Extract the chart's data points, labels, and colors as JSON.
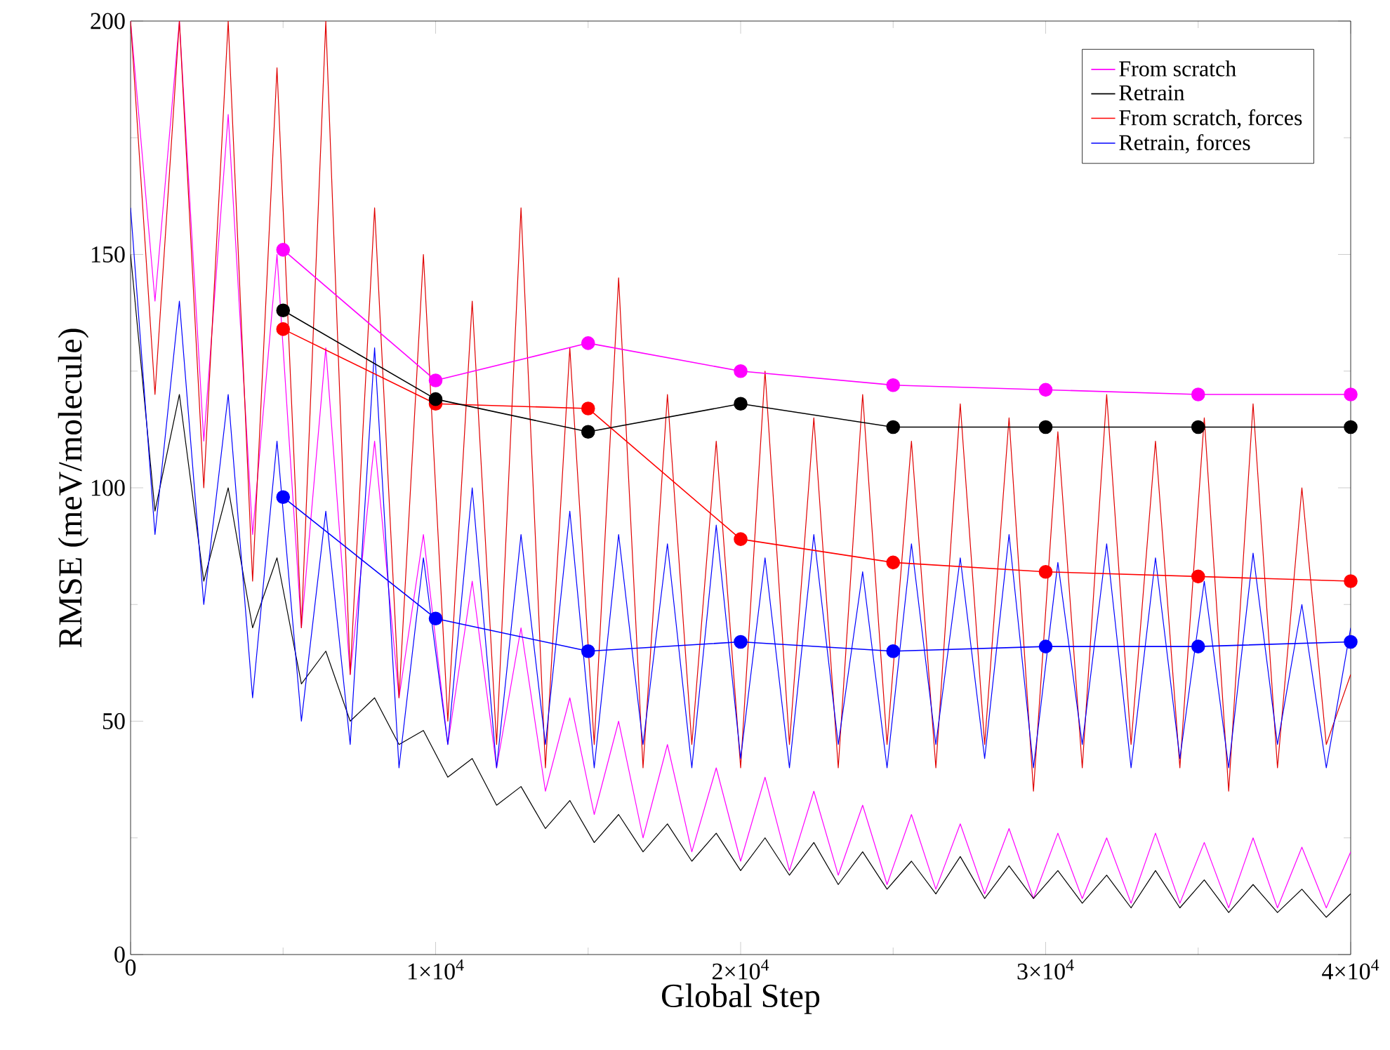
{
  "chart_data": {
    "type": "line",
    "xlabel": "Global Step",
    "ylabel": "RMSE (meV/molecule)",
    "xlim": [
      0,
      40000
    ],
    "ylim": [
      0,
      200
    ],
    "xticks": [
      0,
      {
        "value": 10000,
        "label": "1×10$^{4}$"
      },
      {
        "value": 20000,
        "label": "2×10$^{4}$"
      },
      {
        "value": 30000,
        "label": "3×10$^{4}$"
      },
      {
        "value": 40000,
        "label": "4×10$^{4}$"
      }
    ],
    "yticks": [
      0,
      50,
      100,
      150,
      200
    ],
    "legend": "top right",
    "series": [
      {
        "color": "#ff00ff",
        "marker": "none",
        "x": [
          0,
          800,
          1600,
          2400,
          3200,
          4000,
          4800,
          5600,
          6400,
          7200,
          8000,
          8800,
          9600,
          10400,
          11200,
          12000,
          12800,
          13600,
          14400,
          15200,
          16000,
          16800,
          17600,
          18400,
          19200,
          20000,
          20800,
          21600,
          22400,
          23200,
          24000,
          24800,
          25600,
          26400,
          27200,
          28000,
          28800,
          29600,
          30400,
          31200,
          32000,
          32800,
          33600,
          34400,
          35200,
          36000,
          36800,
          37600,
          38400,
          39200,
          40000
        ],
        "values": [
          200,
          140,
          200,
          110,
          180,
          90,
          150,
          70,
          130,
          60,
          110,
          55,
          90,
          45,
          80,
          40,
          70,
          35,
          55,
          30,
          50,
          25,
          45,
          22,
          40,
          20,
          38,
          18,
          35,
          17,
          32,
          15,
          30,
          14,
          28,
          13,
          27,
          12,
          26,
          12,
          25,
          11,
          26,
          11,
          24,
          10,
          25,
          10,
          23,
          10,
          22
        ]
      },
      {
        "color": "#000000",
        "marker": "none",
        "x": [
          0,
          800,
          1600,
          2400,
          3200,
          4000,
          4800,
          5600,
          6400,
          7200,
          8000,
          8800,
          9600,
          10400,
          11200,
          12000,
          12800,
          13600,
          14400,
          15200,
          16000,
          16800,
          17600,
          18400,
          19200,
          20000,
          20800,
          21600,
          22400,
          23200,
          24000,
          24800,
          25600,
          26400,
          27200,
          28000,
          28800,
          29600,
          30400,
          31200,
          32000,
          32800,
          33600,
          34400,
          35200,
          36000,
          36800,
          37600,
          38400,
          39200,
          40000
        ],
        "values": [
          150,
          95,
          120,
          80,
          100,
          70,
          85,
          58,
          65,
          50,
          55,
          45,
          48,
          38,
          42,
          32,
          36,
          27,
          33,
          24,
          30,
          22,
          28,
          20,
          26,
          18,
          25,
          17,
          24,
          15,
          22,
          14,
          20,
          13,
          21,
          12,
          19,
          12,
          18,
          11,
          17,
          10,
          18,
          10,
          16,
          9,
          15,
          9,
          14,
          8,
          13
        ]
      },
      {
        "color": "#e00000",
        "marker": "none",
        "x": [
          0,
          800,
          1600,
          2400,
          3200,
          4000,
          4800,
          5600,
          6400,
          7200,
          8000,
          8800,
          9600,
          10400,
          11200,
          12000,
          12800,
          13600,
          14400,
          15200,
          16000,
          16800,
          17600,
          18400,
          19200,
          20000,
          20800,
          21600,
          22400,
          23200,
          24000,
          24800,
          25600,
          26400,
          27200,
          28000,
          28800,
          29600,
          30400,
          31200,
          32000,
          32800,
          33600,
          34400,
          35200,
          36000,
          36800,
          37600,
          38400,
          39200,
          40000
        ],
        "values": [
          200,
          120,
          200,
          100,
          200,
          80,
          190,
          70,
          200,
          60,
          160,
          55,
          150,
          50,
          140,
          45,
          160,
          40,
          130,
          45,
          145,
          40,
          120,
          45,
          110,
          40,
          125,
          45,
          115,
          40,
          120,
          45,
          110,
          40,
          118,
          45,
          115,
          35,
          112,
          40,
          120,
          45,
          110,
          40,
          115,
          35,
          118,
          40,
          100,
          45,
          60
        ]
      },
      {
        "color": "#0000ff",
        "marker": "none",
        "x": [
          0,
          800,
          1600,
          2400,
          3200,
          4000,
          4800,
          5600,
          6400,
          7200,
          8000,
          8800,
          9600,
          10400,
          11200,
          12000,
          12800,
          13600,
          14400,
          15200,
          16000,
          16800,
          17600,
          18400,
          19200,
          20000,
          20800,
          21600,
          22400,
          23200,
          24000,
          24800,
          25600,
          26400,
          27200,
          28000,
          28800,
          29600,
          30400,
          31200,
          32000,
          32800,
          33600,
          34400,
          35200,
          36000,
          36800,
          37600,
          38400,
          39200,
          40000
        ],
        "values": [
          160,
          90,
          140,
          75,
          120,
          55,
          110,
          50,
          95,
          45,
          130,
          40,
          85,
          45,
          100,
          40,
          90,
          45,
          95,
          40,
          90,
          45,
          88,
          40,
          92,
          42,
          85,
          40,
          90,
          45,
          82,
          40,
          88,
          45,
          85,
          42,
          90,
          40,
          84,
          45,
          88,
          40,
          85,
          42,
          80,
          40,
          86,
          45,
          75,
          40,
          70
        ]
      },
      {
        "name": "From scratch",
        "color": "#ff00ff",
        "marker": "circle",
        "x": [
          5000,
          10000,
          15000,
          20000,
          25000,
          30000,
          35000,
          40000
        ],
        "values": [
          151,
          123,
          131,
          125,
          122,
          121,
          120,
          120
        ]
      },
      {
        "name": "Retrain",
        "color": "#000000",
        "marker": "circle",
        "x": [
          5000,
          10000,
          15000,
          20000,
          25000,
          30000,
          35000,
          40000
        ],
        "values": [
          138,
          119,
          112,
          118,
          113,
          113,
          113,
          113
        ]
      },
      {
        "name": "From scratch, forces",
        "color": "#ff0000",
        "marker": "circle",
        "x": [
          5000,
          10000,
          15000,
          20000,
          25000,
          30000,
          35000,
          40000
        ],
        "values": [
          134,
          118,
          117,
          89,
          84,
          82,
          81,
          80
        ]
      },
      {
        "name": "Retrain, forces",
        "color": "#0000ff",
        "marker": "circle",
        "x": [
          5000,
          10000,
          15000,
          20000,
          25000,
          30000,
          35000,
          40000
        ],
        "values": [
          98,
          72,
          65,
          67,
          65,
          66,
          66,
          67
        ]
      }
    ]
  }
}
